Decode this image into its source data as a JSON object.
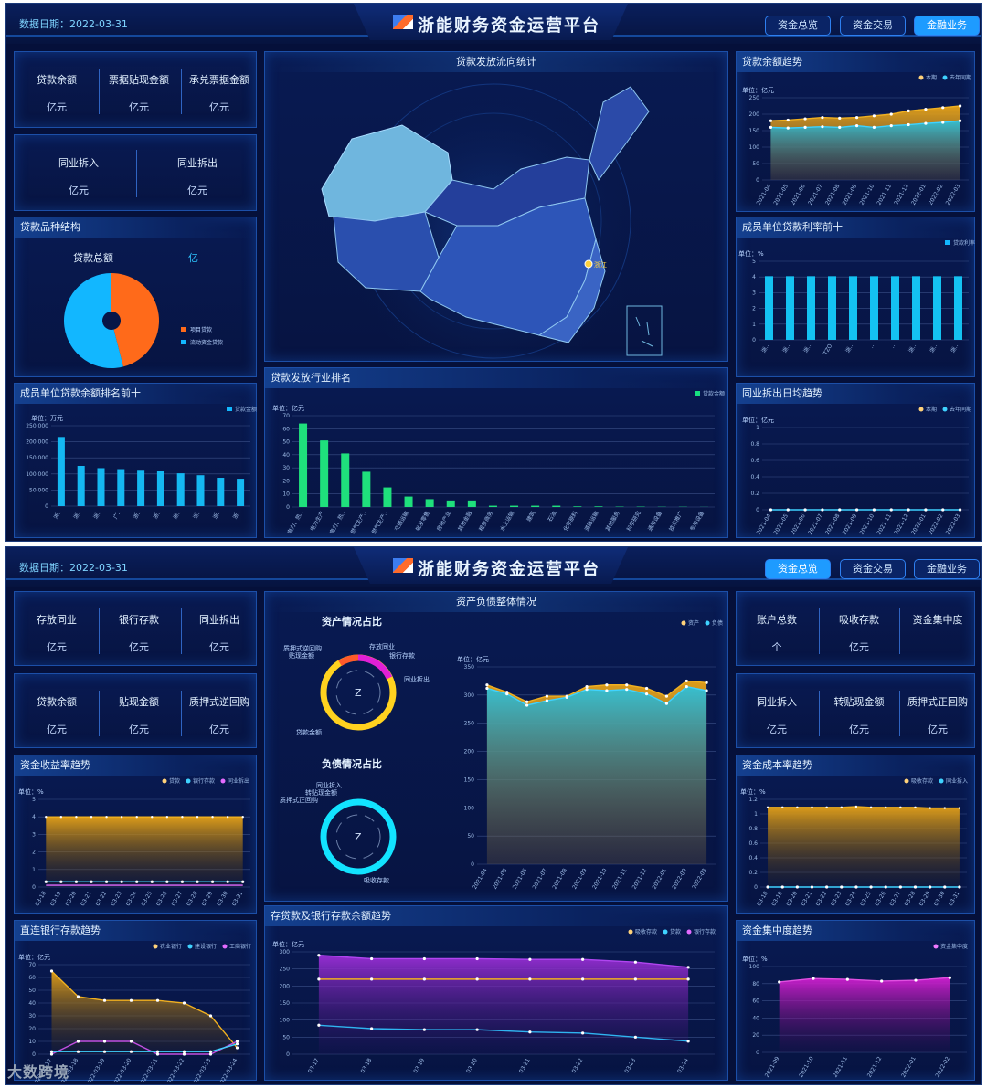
{
  "screen1": {
    "date": "数据日期：2022-03-31",
    "title": "浙能财务资金运营平台",
    "tabs": [
      "资金总览",
      "资金交易",
      "金融业务"
    ],
    "kpi_row1": [
      {
        "label": "贷款余额",
        "unit": "亿元"
      },
      {
        "label": "票据贴现金额",
        "unit": "亿元"
      },
      {
        "label": "承兑票据金额",
        "unit": "亿元"
      }
    ],
    "kpi_row2": [
      {
        "label": "同业拆入",
        "unit": "亿元"
      },
      {
        "label": "同业拆出",
        "unit": "亿元"
      }
    ],
    "loan_structure": {
      "title": "贷款品种结构",
      "total_label": "贷款总额",
      "total_unit": "亿",
      "legend": [
        "项目贷款",
        "流动资金贷款"
      ],
      "colors": [
        "#ff6a1a",
        "#12b7ff"
      ],
      "shares": [
        0.46,
        0.54
      ]
    },
    "map": {
      "title": "贷款发放流向统计",
      "marker_label": "浙江"
    },
    "member_loan_rank": {
      "title": "成员单位贷款余额排名前十",
      "unit": "单位：万元",
      "legend": "贷款金额",
      "yticks": [
        "250,000",
        "200,000",
        "150,000",
        "100,000",
        "50,000",
        "0"
      ],
      "ymax": 250000,
      "values": [
        215000,
        125000,
        118000,
        115000,
        110000,
        108000,
        102000,
        96000,
        88000,
        85000
      ],
      "categories": [
        "浙..",
        "浙..",
        "浙..",
        "广..",
        "浙..",
        "浙..",
        "浙..",
        "浙..",
        "浙..",
        "浙.."
      ]
    },
    "industry_rank": {
      "title": "贷款发放行业排名",
      "unit": "单位：亿元",
      "legend": "贷款金额",
      "yticks": [
        "70",
        "60",
        "50",
        "40",
        "30",
        "20",
        "10",
        "0"
      ],
      "ymax": 70,
      "values": [
        64,
        51,
        41,
        27,
        15,
        8,
        6,
        5,
        5,
        1,
        1,
        1,
        1,
        0.5,
        0.5,
        0.3,
        0.3,
        0.2,
        0.2,
        0.1
      ],
      "categories": [
        "电力、热..",
        "电力生产",
        "电力、热..",
        "燃气生产..",
        "燃气生产..",
        "交通运输",
        "批发零售",
        "房地产业",
        "其他金融",
        "租赁商务",
        "水上运输",
        "建筑",
        "石油",
        "化学原料",
        "道路运输",
        "其他服务",
        "科学研究",
        "通用设备",
        "技术推广",
        "专用设备"
      ]
    },
    "loan_trend": {
      "title": "贷款余额趋势",
      "unit": "单位：亿元",
      "legend": [
        "本期",
        "去年同期"
      ],
      "yticks": [
        "250",
        "200",
        "150",
        "100",
        "50",
        "0"
      ],
      "ymax": 250,
      "x": [
        "2021-04",
        "2021-05",
        "2021-06",
        "2021-07",
        "2021-08",
        "2021-09",
        "2021-10",
        "2021-11",
        "2021-12",
        "2022-01",
        "2022-02",
        "2022-03"
      ],
      "current": [
        180,
        182,
        186,
        190,
        188,
        190,
        195,
        200,
        210,
        215,
        220,
        225
      ],
      "last_year": [
        160,
        158,
        160,
        162,
        160,
        165,
        160,
        165,
        168,
        172,
        175,
        180
      ]
    },
    "rate_rank": {
      "title": "成员单位贷款利率前十",
      "unit": "单位：%",
      "legend": "贷款利率",
      "yticks": [
        "5",
        "4",
        "3",
        "2",
        "1",
        "0"
      ],
      "ymax": 5,
      "values": [
        4.05,
        4.05,
        4.05,
        4.05,
        4.05,
        4.05,
        4.05,
        4.05,
        4.05,
        4.05
      ],
      "categories": [
        "浙..",
        "浙..",
        "浙..",
        "TZO",
        "浙..",
        "..",
        "..",
        "浙..",
        "浙..",
        "浙.."
      ]
    },
    "lending_trend": {
      "title": "同业拆出日均趋势",
      "unit": "单位：亿元",
      "legend": [
        "本期",
        "去年同期"
      ],
      "yticks": [
        "1",
        "0.8",
        "0.6",
        "0.4",
        "0.2",
        "0"
      ],
      "ymax": 1,
      "x": [
        "2021-04",
        "2021-05",
        "2021-06",
        "2021-07",
        "2021-08",
        "2021-09",
        "2021-10",
        "2021-11",
        "2021-12",
        "2022-01",
        "2022-02",
        "2022-03"
      ],
      "current": [
        0,
        0,
        0,
        0,
        0,
        0,
        0,
        0,
        0,
        0,
        0,
        0
      ]
    }
  },
  "screen2": {
    "date": "数据日期：2022-03-31",
    "title": "浙能财务资金运营平台",
    "tabs": [
      "资金总览",
      "资金交易",
      "金融业务"
    ],
    "left_kpi1": [
      {
        "label": "存放同业",
        "unit": "亿元"
      },
      {
        "label": "银行存款",
        "unit": "亿元"
      },
      {
        "label": "同业拆出",
        "unit": "亿元"
      }
    ],
    "left_kpi2": [
      {
        "label": "贷款余额",
        "unit": "亿元"
      },
      {
        "label": "贴现金额",
        "unit": "亿元"
      },
      {
        "label": "质押式逆回购",
        "unit": "亿元"
      }
    ],
    "right_kpi1": [
      {
        "label": "账户总数",
        "unit": "个"
      },
      {
        "label": "吸收存款",
        "unit": "亿元"
      },
      {
        "label": "资金集中度",
        "unit": ""
      }
    ],
    "right_kpi2": [
      {
        "label": "同业拆入",
        "unit": "亿元"
      },
      {
        "label": "转贴现金额",
        "unit": "亿元"
      },
      {
        "label": "质押式正回购",
        "unit": "亿元"
      }
    ],
    "balance": {
      "title": "资产负债整体情况",
      "asset_title": "资产情况占比",
      "liability_title": "负债情况占比",
      "ring_center": "Z",
      "asset_labels": [
        "质押式逆回购",
        "贴现金额",
        "存放同业",
        "银行存款",
        "同业拆出",
        "贷款金额"
      ],
      "liability_labels": [
        "同业拆入",
        "转贴现金额",
        "质押式正回购",
        "吸收存款"
      ],
      "unit": "单位：亿元",
      "legend": [
        "资产",
        "负债"
      ],
      "yticks": [
        "350",
        "300",
        "250",
        "200",
        "150",
        "100",
        "50",
        "0"
      ],
      "ymax": 350,
      "x": [
        "2021-04",
        "2021-05",
        "2021-06",
        "2021-07",
        "2021-08",
        "2021-09",
        "2021-10",
        "2021-11",
        "2021-12",
        "2022-01",
        "2022-02",
        "2022-03"
      ],
      "asset": [
        318,
        305,
        288,
        298,
        298,
        315,
        318,
        318,
        312,
        298,
        325,
        322
      ],
      "liability": [
        312,
        302,
        282,
        290,
        296,
        310,
        308,
        310,
        302,
        285,
        315,
        308
      ]
    },
    "yield_trend": {
      "title": "资金收益率趋势",
      "unit": "单位：%",
      "legend": [
        "贷款",
        "银行存款",
        "同业拆出"
      ],
      "yticks": [
        "5",
        "4",
        "3",
        "2",
        "1",
        "0"
      ],
      "ymax": 5,
      "x": [
        "03-18",
        "03-19",
        "03-20",
        "03-21",
        "03-22",
        "03-23",
        "03-24",
        "03-25",
        "03-26",
        "03-27",
        "03-28",
        "03-29",
        "03-30",
        "03-31"
      ],
      "loan": [
        4,
        4,
        4,
        4,
        4,
        4,
        4,
        4,
        4,
        4,
        4,
        4,
        4,
        4
      ],
      "deposit": [
        0.3,
        0.3,
        0.3,
        0.3,
        0.3,
        0.3,
        0.3,
        0.3,
        0.3,
        0.3,
        0.3,
        0.3,
        0.3,
        0.3
      ],
      "lending": [
        0.1,
        0.1,
        0.1,
        0.1,
        0.1,
        0.1,
        0.1,
        0.1,
        0.1,
        0.1,
        0.1,
        0.1,
        0.1,
        0.1
      ]
    },
    "cost_trend": {
      "title": "资金成本率趋势",
      "unit": "单位：%",
      "legend": [
        "吸收存款",
        "同业拆入"
      ],
      "yticks": [
        "1.2",
        "1",
        "0.8",
        "0.6",
        "0.4",
        "0.2",
        "0"
      ],
      "ymax": 1.2,
      "x": [
        "03-18",
        "03-19",
        "03-20",
        "03-21",
        "03-22",
        "03-23",
        "03-24",
        "03-25",
        "03-26",
        "03-27",
        "03-28",
        "03-29",
        "03-30",
        "03-31"
      ],
      "deposit": [
        1.09,
        1.09,
        1.09,
        1.09,
        1.09,
        1.09,
        1.1,
        1.09,
        1.09,
        1.09,
        1.09,
        1.08,
        1.08,
        1.08
      ],
      "interbank": [
        0,
        0,
        0,
        0,
        0,
        0,
        0,
        0,
        0,
        0,
        0,
        0,
        0,
        0
      ]
    },
    "bank_deposit_trend": {
      "title": "直连银行存款趋势",
      "unit": "单位：亿元",
      "legend": [
        "农业银行",
        "建设银行",
        "工商银行"
      ],
      "yticks": [
        "70",
        "60",
        "50",
        "40",
        "30",
        "20",
        "10",
        "0"
      ],
      "ymax": 70,
      "x": [
        "2022-03-17",
        "2022-03-18",
        "2022-03-19",
        "2022-03-20",
        "2022-03-21",
        "2022-03-22",
        "2022-03-23",
        "2022-03-24"
      ],
      "abc": [
        65,
        45,
        42,
        42,
        42,
        40,
        30,
        5
      ],
      "ccb": [
        2,
        2,
        2,
        2,
        2,
        2,
        2,
        8
      ],
      "icbc": [
        0,
        10,
        10,
        10,
        0,
        0,
        0,
        10
      ]
    },
    "deposit_loan_trend": {
      "title": "存贷款及银行存款余额趋势",
      "unit": "单位：亿元",
      "legend": [
        "吸收存款",
        "贷款",
        "银行存款"
      ],
      "yticks": [
        "300",
        "250",
        "200",
        "150",
        "100",
        "50",
        "0"
      ],
      "ymax": 300,
      "x": [
        "03-17",
        "03-18",
        "03-19",
        "03-20",
        "03-21",
        "03-22",
        "03-23",
        "03-24"
      ],
      "deposit": [
        290,
        280,
        280,
        280,
        278,
        278,
        270,
        255
      ],
      "loan": [
        220,
        220,
        220,
        220,
        220,
        220,
        220,
        220
      ],
      "bank": [
        85,
        75,
        72,
        72,
        65,
        62,
        50,
        38
      ]
    },
    "concentration_trend": {
      "title": "资金集中度趋势",
      "unit": "单位：%",
      "legend": "资金集中度",
      "yticks": [
        "100",
        "80",
        "60",
        "40",
        "20",
        "0"
      ],
      "ymax": 100,
      "x": [
        "2021-09",
        "2021-10",
        "2021-11",
        "2021-12",
        "2022-01",
        "2022-02"
      ],
      "values": [
        82,
        86,
        85,
        83,
        84,
        87
      ]
    }
  },
  "watermark": "大数跨境"
}
